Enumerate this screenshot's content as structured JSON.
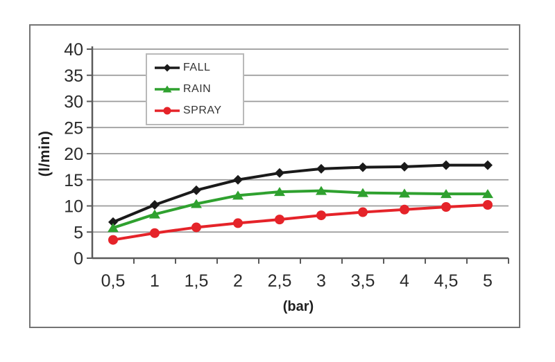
{
  "page": {
    "background": "#ffffff"
  },
  "figure": {
    "border_color": "#737373",
    "background": "#ffffff"
  },
  "chart_data": {
    "type": "line",
    "title": "",
    "xlabel": "(bar)",
    "ylabel": "(l/min)",
    "x": [
      0.5,
      1,
      1.5,
      2,
      2.5,
      3,
      3.5,
      4,
      4.5,
      5
    ],
    "x_tick_labels": [
      "0,5",
      "1",
      "1,5",
      "2",
      "2,5",
      "3",
      "3,5",
      "4",
      "4,5",
      "5"
    ],
    "ylim": [
      0,
      40
    ],
    "ytick_step": 5,
    "y_tick_labels": [
      "0",
      "5",
      "10",
      "15",
      "20",
      "25",
      "30",
      "35",
      "40"
    ],
    "grid": true,
    "legend_position": "upper-left-inside",
    "series": [
      {
        "name": "FALL",
        "color": "#1a1a1a",
        "marker": "diamond",
        "values": [
          6.9,
          10.2,
          13.0,
          15.0,
          16.3,
          17.1,
          17.4,
          17.5,
          17.8,
          17.8
        ]
      },
      {
        "name": "RAIN",
        "color": "#2fa12f",
        "marker": "triangle",
        "values": [
          5.8,
          8.4,
          10.4,
          12.0,
          12.7,
          12.9,
          12.5,
          12.4,
          12.3,
          12.3
        ]
      },
      {
        "name": "SPRAY",
        "color": "#e52329",
        "marker": "circle",
        "values": [
          3.5,
          4.8,
          5.9,
          6.7,
          7.4,
          8.2,
          8.8,
          9.3,
          9.8,
          10.2
        ]
      }
    ],
    "style": {
      "grid_color": "#9a9a9a",
      "axis_color": "#5a5a5a",
      "tick_label_color": "#2b2b2b",
      "line_width": 4
    }
  }
}
